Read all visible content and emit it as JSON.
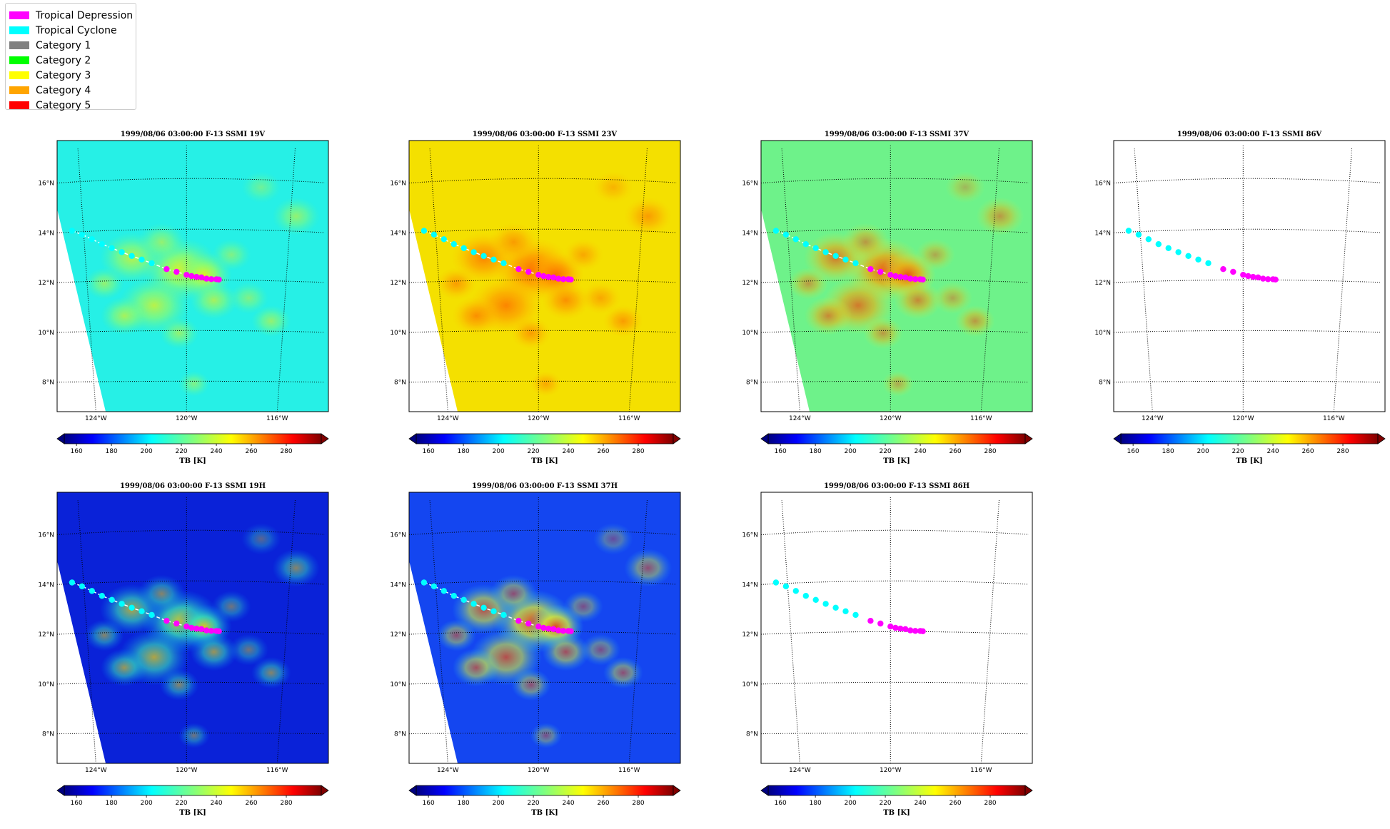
{
  "legend": {
    "items": [
      {
        "label": "Tropical Depression",
        "color": "#ff00ff"
      },
      {
        "label": "Tropical Cyclone",
        "color": "#00ffff"
      },
      {
        "label": "Category 1",
        "color": "#808080"
      },
      {
        "label": "Category 2",
        "color": "#00ff00"
      },
      {
        "label": "Category 3",
        "color": "#ffff00"
      },
      {
        "label": "Category 4",
        "color": "#ffa500"
      },
      {
        "label": "Category 5",
        "color": "#ff0000"
      }
    ]
  },
  "map": {
    "lon_ticks": [
      "124°W",
      "120°W",
      "116°W"
    ],
    "lat_ticks": [
      "16°N",
      "14°N",
      "12°N",
      "10°N",
      "8°N"
    ],
    "extent": {
      "lon": [
        -125.2,
        -114.3
      ],
      "lat": [
        6.8,
        17.5
      ]
    }
  },
  "colorbar": {
    "label": "TB [K]",
    "ticks": [
      "160",
      "180",
      "200",
      "220",
      "240",
      "260",
      "280"
    ],
    "range": [
      153,
      300
    ],
    "colormap": "jet"
  },
  "panels": [
    {
      "title": "1999/08/06 03:00:00  F-13 SSMI 19V",
      "background": "#26f0e6",
      "swath": true,
      "fill": "cyan"
    },
    {
      "title": "1999/08/06 03:00:00  F-13 SSMI 23V",
      "background": "#f4e000",
      "swath": true,
      "fill": "yellow"
    },
    {
      "title": "1999/08/06 03:00:00  F-13 SSMI 37V",
      "background": "#6ef28a",
      "swath": true,
      "fill": "green"
    },
    {
      "title": "1999/08/06 03:00:00  F-13 SSMI 86V",
      "background": "#ffffff",
      "swath": false,
      "fill": "none"
    },
    {
      "title": "1999/08/06 03:00:00  F-13 SSMI 19H",
      "background": "#0a22d8",
      "swath": true,
      "fill": "blue"
    },
    {
      "title": "1999/08/06 03:00:00  F-13 SSMI 37H",
      "background": "#1446f0",
      "swath": true,
      "fill": "blue2"
    },
    {
      "title": "1999/08/06 03:00:00  F-13 SSMI 86H",
      "background": "#ffffff",
      "swath": false,
      "fill": "none"
    }
  ],
  "track": {
    "points": [
      {
        "lon": -124.6,
        "lat": 14.05,
        "category": "Tropical Cyclone"
      },
      {
        "lon": -124.2,
        "lat": 13.88,
        "category": "Tropical Cyclone"
      },
      {
        "lon": -123.8,
        "lat": 13.68,
        "category": "Tropical Cyclone"
      },
      {
        "lon": -123.4,
        "lat": 13.47,
        "category": "Tropical Cyclone"
      },
      {
        "lon": -123.0,
        "lat": 13.3,
        "category": "Tropical Cyclone"
      },
      {
        "lon": -122.6,
        "lat": 13.13,
        "category": "Tropical Cyclone"
      },
      {
        "lon": -122.2,
        "lat": 12.97,
        "category": "Tropical Cyclone"
      },
      {
        "lon": -121.8,
        "lat": 12.82,
        "category": "Tropical Cyclone"
      },
      {
        "lon": -121.4,
        "lat": 12.67,
        "category": "Tropical Cyclone"
      },
      {
        "lon": -120.8,
        "lat": 12.43,
        "category": "Tropical Depression"
      },
      {
        "lon": -120.4,
        "lat": 12.32,
        "category": "Tropical Depression"
      },
      {
        "lon": -120.0,
        "lat": 12.2,
        "category": "Tropical Depression"
      },
      {
        "lon": -119.8,
        "lat": 12.15,
        "category": "Tropical Depression"
      },
      {
        "lon": -119.6,
        "lat": 12.12,
        "category": "Tropical Depression"
      },
      {
        "lon": -119.4,
        "lat": 12.1,
        "category": "Tropical Depression"
      },
      {
        "lon": -119.2,
        "lat": 12.05,
        "category": "Tropical Depression"
      },
      {
        "lon": -119.0,
        "lat": 12.03,
        "category": "Tropical Depression"
      },
      {
        "lon": -118.8,
        "lat": 12.03,
        "category": "Tropical Depression"
      },
      {
        "lon": -118.7,
        "lat": 12.02,
        "category": "Tropical Depression"
      }
    ]
  }
}
